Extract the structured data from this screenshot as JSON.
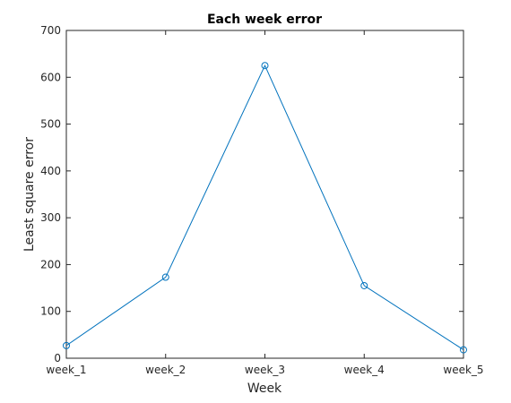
{
  "chart_data": {
    "type": "line",
    "title": "Each week error",
    "xlabel": "Week",
    "ylabel": "Least square error",
    "categories": [
      "week_1",
      "week_2",
      "week_3",
      "week_4",
      "week_5"
    ],
    "series": [
      {
        "values": [
          27,
          173,
          625,
          155,
          18
        ],
        "color": "#0072BD",
        "marker": "circle"
      }
    ],
    "ylim": [
      0,
      700
    ],
    "yticks": [
      0,
      100,
      200,
      300,
      400,
      500,
      600,
      700
    ],
    "grid": false,
    "box": true
  }
}
